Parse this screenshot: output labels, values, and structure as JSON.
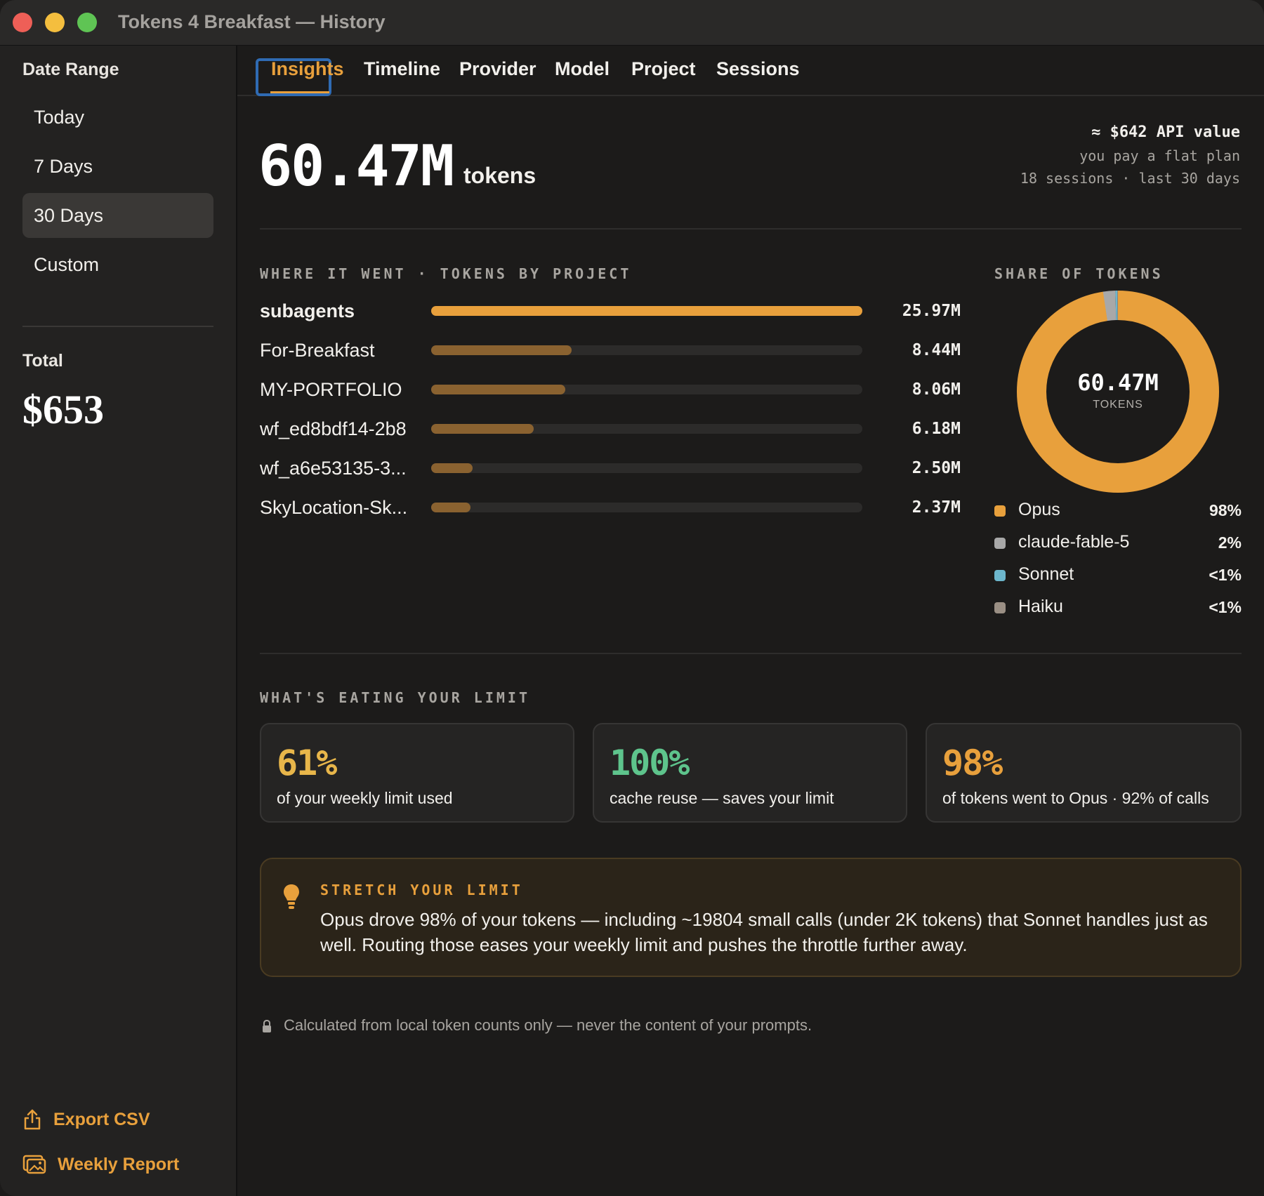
{
  "window": {
    "title": "Tokens 4 Breakfast — History"
  },
  "sidebar": {
    "date_range_heading": "Date Range",
    "ranges": [
      "Today",
      "7 Days",
      "30 Days",
      "Custom"
    ],
    "selected_range": "30 Days",
    "total_heading": "Total",
    "total_value": "$653",
    "export_csv": "Export CSV",
    "weekly_report": "Weekly Report"
  },
  "tabs": [
    "Insights",
    "Timeline",
    "Provider",
    "Model",
    "Project",
    "Sessions"
  ],
  "active_tab": "Insights",
  "hero": {
    "value": "60.47M",
    "unit": "tokens",
    "api_value": "≈ $642 API value",
    "plan_note": "you pay a flat plan",
    "sessions_note": "18 sessions · last 30 days"
  },
  "projects": {
    "label": "WHERE IT WENT · TOKENS BY PROJECT",
    "max_value": 25.97,
    "items": [
      {
        "name": "subagents",
        "value": 25.97,
        "display": "25.97M"
      },
      {
        "name": "For-Breakfast",
        "value": 8.44,
        "display": "8.44M"
      },
      {
        "name": "MY-PORTFOLIO",
        "value": 8.06,
        "display": "8.06M"
      },
      {
        "name": "wf_ed8bdf14-2b8",
        "value": 6.18,
        "display": "6.18M"
      },
      {
        "name": "wf_a6e53135-3...",
        "value": 2.5,
        "display": "2.50M"
      },
      {
        "name": "SkyLocation-Sk...",
        "value": 2.37,
        "display": "2.37M"
      }
    ]
  },
  "share": {
    "label": "SHARE OF TOKENS",
    "center_value": "60.47M",
    "center_caption": "TOKENS",
    "segments": [
      {
        "name": "Opus",
        "pct_label": "98%",
        "fraction": 0.976,
        "color": "#e8a03c"
      },
      {
        "name": "claude-fable-5",
        "pct_label": "2%",
        "fraction": 0.02,
        "color": "#a8a8a8"
      },
      {
        "name": "Sonnet",
        "pct_label": "<1%",
        "fraction": 0.003,
        "color": "#6cb6cc"
      },
      {
        "name": "Haiku",
        "pct_label": "<1%",
        "fraction": 0.001,
        "color": "#9a8f84"
      }
    ]
  },
  "limit": {
    "label": "WHAT'S EATING YOUR LIMIT",
    "cards": [
      {
        "value": "61%",
        "caption": "of your weekly limit used",
        "color": "#e8b64a"
      },
      {
        "value": "100%",
        "caption": "cache reuse — saves your limit",
        "color": "#5ec48c"
      },
      {
        "value": "98%",
        "caption": "of tokens went to Opus · 92% of calls",
        "color": "#e8a03c"
      }
    ]
  },
  "tip": {
    "title": "STRETCH YOUR LIMIT",
    "body": "Opus drove 98% of your tokens — including ~19804 small calls (under 2K tokens) that Sonnet handles just as well. Routing those eases your weekly limit and pushes the throttle further away."
  },
  "footnote": "Calculated from local token counts only — never the content of your prompts.",
  "colors": {
    "accent": "#e8a03c",
    "bar_primary": "#e8a03c",
    "bar_secondary": "#8a6230"
  }
}
